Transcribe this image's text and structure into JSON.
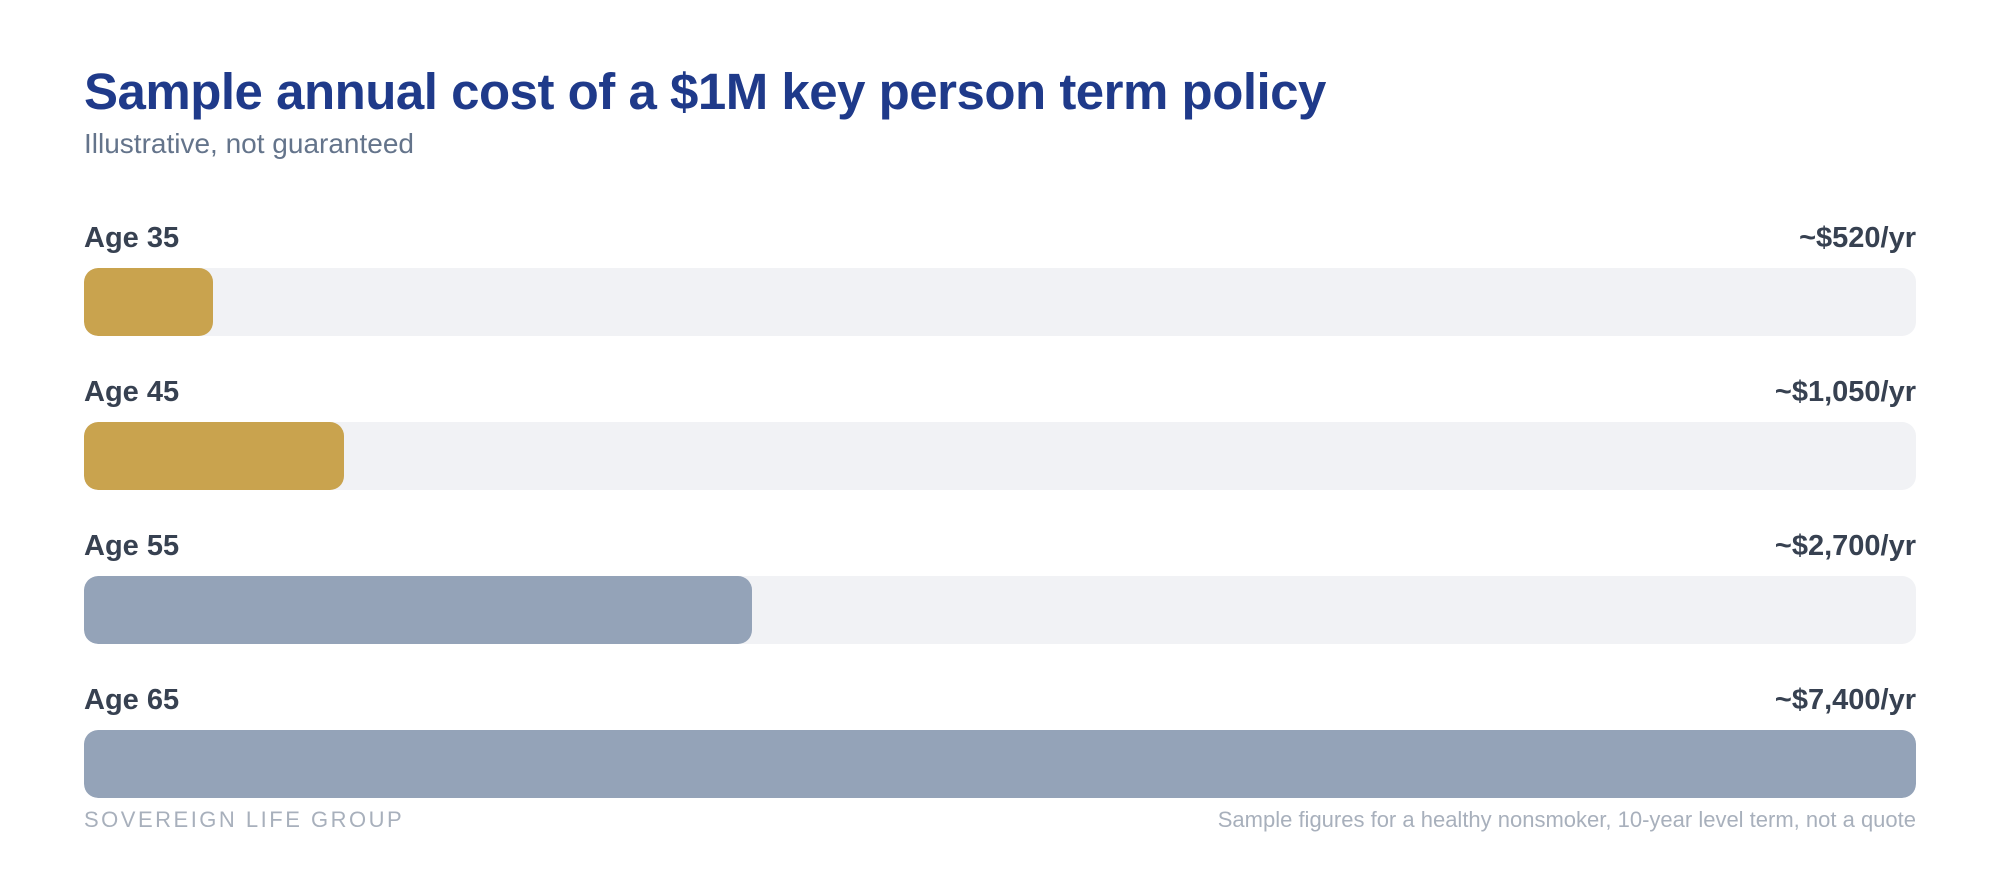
{
  "chart_data": {
    "type": "bar",
    "orientation": "horizontal",
    "title": "Sample annual cost of a $1M key person term policy",
    "subtitle": "Illustrative, not guaranteed",
    "categories": [
      "Age 35",
      "Age 45",
      "Age 55",
      "Age 65"
    ],
    "values": [
      520,
      1050,
      2700,
      7400
    ],
    "value_labels": [
      "~$520/yr",
      "~$1,050/yr",
      "~$2,700/yr",
      "~$7,400/yr"
    ],
    "bar_colors": [
      "#c9a34e",
      "#c9a34e",
      "#94a3b8",
      "#94a3b8"
    ],
    "track_color": "#f1f2f5",
    "xlim": [
      0,
      7400
    ],
    "grid": false,
    "legend": "none"
  },
  "footer": {
    "brand": "SOVEREIGN LIFE GROUP",
    "note": "Sample figures for a healthy nonsmoker, 10-year level term, not a quote"
  }
}
